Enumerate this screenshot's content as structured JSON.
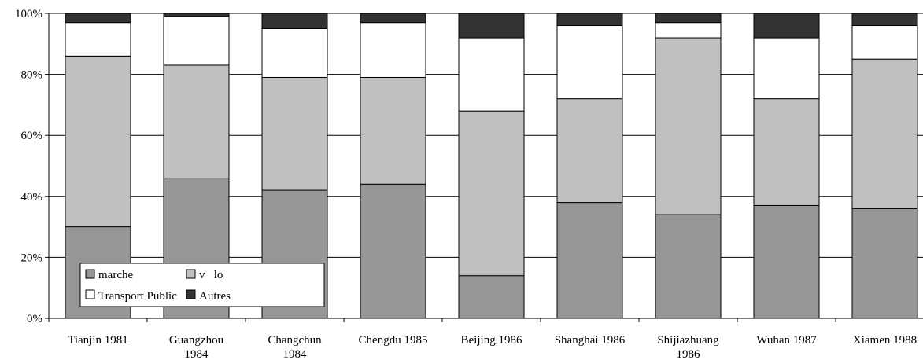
{
  "chart_data": {
    "type": "bar",
    "stacked": "percent",
    "categories": [
      [
        "Tianjin 1981"
      ],
      [
        "Guangzhou",
        "1984"
      ],
      [
        "Changchun",
        "1984"
      ],
      [
        "Chengdu 1985"
      ],
      [
        "Beijing 1986"
      ],
      [
        "Shanghai 1986"
      ],
      [
        "Shijiazhuang",
        "1986"
      ],
      [
        "Wuhan 1987"
      ],
      [
        "Xiamen 1988"
      ]
    ],
    "series": [
      {
        "name": "marche",
        "color": "#969696",
        "values": [
          30,
          46,
          42,
          44,
          14,
          38,
          34,
          37,
          36
        ]
      },
      {
        "name": "v   lo",
        "color": "#c0c0c0",
        "values": [
          56,
          37,
          37,
          35,
          54,
          34,
          58,
          35,
          49
        ]
      },
      {
        "name": "Transport Public",
        "color": "#ffffff",
        "values": [
          11,
          16,
          16,
          18,
          24,
          24,
          5,
          20,
          11
        ]
      },
      {
        "name": "Autres",
        "color": "#333333",
        "values": [
          3,
          1,
          5,
          3,
          8,
          4,
          3,
          8,
          4
        ]
      }
    ],
    "yticks": [
      "0%",
      "20%",
      "40%",
      "60%",
      "80%",
      "100%"
    ],
    "ylim": [
      0,
      100
    ],
    "grid": true,
    "legend_position": "bottom-left"
  }
}
